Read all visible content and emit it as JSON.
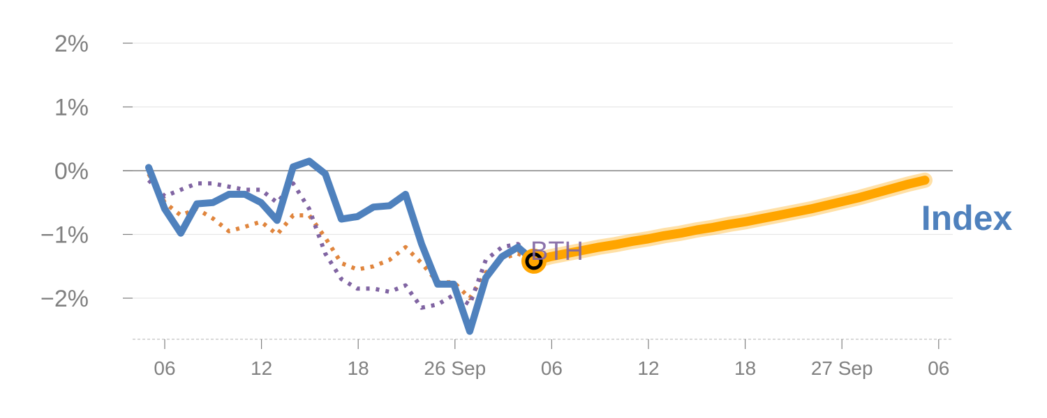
{
  "chart_data": {
    "type": "line",
    "title": "",
    "xlabel": "",
    "ylabel": "",
    "y_unit": "%",
    "ylim": [
      -2.6,
      2.0
    ],
    "grid": true,
    "legend": "none",
    "x_ticks": [
      "06",
      "12",
      "18",
      "26 Sep",
      "06",
      "12",
      "18",
      "27 Sep",
      "06"
    ],
    "y_ticks": [
      "2%",
      "1%",
      "0%",
      "−1%",
      "−2%"
    ],
    "y_tick_values": [
      2,
      1,
      0,
      -1,
      -2
    ],
    "series_label": "Index",
    "marker_label": "BTH",
    "series": [
      {
        "role": "primary",
        "color": "#4f81bd",
        "style": "solid",
        "values": [
          0.05,
          -0.6,
          -0.98,
          -0.52,
          -0.5,
          -0.37,
          -0.37,
          -0.5,
          -0.78,
          0.06,
          0.15,
          -0.05,
          -0.76,
          -0.72,
          -0.57,
          -0.55,
          -0.37,
          -1.15,
          -1.78,
          -1.78,
          -2.52,
          -1.68,
          -1.35,
          -1.2,
          -1.42
        ]
      },
      {
        "role": "comparison",
        "color": "#e0853d",
        "style": "dotted",
        "values": [
          -0.05,
          -0.5,
          -0.7,
          -0.6,
          -0.75,
          -0.95,
          -0.88,
          -0.8,
          -1.0,
          -0.7,
          -0.7,
          -1.05,
          -1.45,
          -1.55,
          -1.5,
          -1.4,
          -1.2,
          -1.45,
          -1.75,
          -1.75,
          -2.0,
          -1.6,
          -1.38,
          -1.3,
          -1.42
        ]
      },
      {
        "role": "comparison",
        "color": "#8064a2",
        "style": "dotted",
        "values": [
          -0.15,
          -0.4,
          -0.3,
          -0.2,
          -0.2,
          -0.25,
          -0.3,
          -0.3,
          -0.5,
          -0.2,
          -0.6,
          -1.3,
          -1.7,
          -1.85,
          -1.85,
          -1.9,
          -1.8,
          -2.15,
          -2.1,
          -1.95,
          -2.1,
          -1.4,
          -1.2,
          -1.15,
          -1.42
        ]
      },
      {
        "role": "projection",
        "color": "#ffa500",
        "style": "solid-thick",
        "values": [
          -1.42,
          -1.35,
          -1.3,
          -1.25,
          -1.2,
          -1.16,
          -1.11,
          -1.07,
          -1.02,
          -0.98,
          -0.93,
          -0.89,
          -0.84,
          -0.8,
          -0.75,
          -0.7,
          -0.65,
          -0.6,
          -0.54,
          -0.48,
          -0.42,
          -0.35,
          -0.28,
          -0.21,
          -0.15
        ]
      }
    ],
    "colors": {
      "primary": "#4f81bd",
      "projection": "#ffa500",
      "axis_text": "#808080",
      "grid": "#e6e6e6",
      "zero_line": "#808080"
    }
  }
}
